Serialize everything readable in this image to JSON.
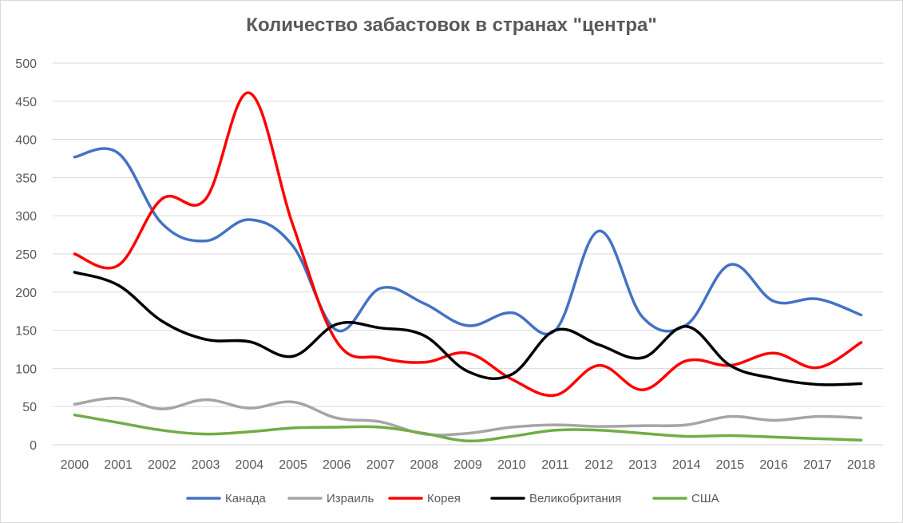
{
  "chart_data": {
    "type": "line",
    "title": "Количество забастовок в странах \"центра\"",
    "xlabel": "",
    "ylabel": "",
    "ylim": [
      0,
      500
    ],
    "yticks": [
      "0",
      "50",
      "100",
      "150",
      "200",
      "250",
      "300",
      "350",
      "400",
      "450",
      "500"
    ],
    "grid": true,
    "smooth": true,
    "legend_position": "bottom",
    "categories": [
      "2000",
      "2001",
      "2002",
      "2003",
      "2004",
      "2005",
      "2006",
      "2007",
      "2008",
      "2009",
      "2010",
      "2011",
      "2012",
      "2013",
      "2014",
      "2015",
      "2016",
      "2017",
      "2018"
    ],
    "series": [
      {
        "name": "Канада",
        "color": "#4472c4",
        "values": [
          377,
          382,
          290,
          267,
          295,
          260,
          150,
          205,
          185,
          156,
          173,
          150,
          280,
          167,
          157,
          236,
          188,
          191,
          170
        ]
      },
      {
        "name": "Израиль",
        "color": "#a5a5a5",
        "values": [
          53,
          61,
          47,
          59,
          48,
          56,
          35,
          30,
          14,
          15,
          23,
          26,
          24,
          25,
          26,
          37,
          32,
          37,
          35
        ]
      },
      {
        "name": "Корея",
        "color": "#ff0000",
        "values": [
          250,
          235,
          322,
          322,
          461,
          287,
          135,
          114,
          108,
          120,
          86,
          65,
          104,
          72,
          110,
          104,
          120,
          101,
          134
        ]
      },
      {
        "name": "Великобритания",
        "color": "#000000",
        "values": [
          226,
          209,
          162,
          138,
          135,
          116,
          158,
          153,
          143,
          96,
          92,
          150,
          131,
          114,
          155,
          104,
          87,
          79,
          80
        ]
      },
      {
        "name": "США",
        "color": "#70ad47",
        "values": [
          39,
          29,
          19,
          14,
          17,
          22,
          23,
          23,
          15,
          5,
          11,
          19,
          19,
          15,
          11,
          12,
          10,
          8,
          6
        ]
      }
    ]
  }
}
